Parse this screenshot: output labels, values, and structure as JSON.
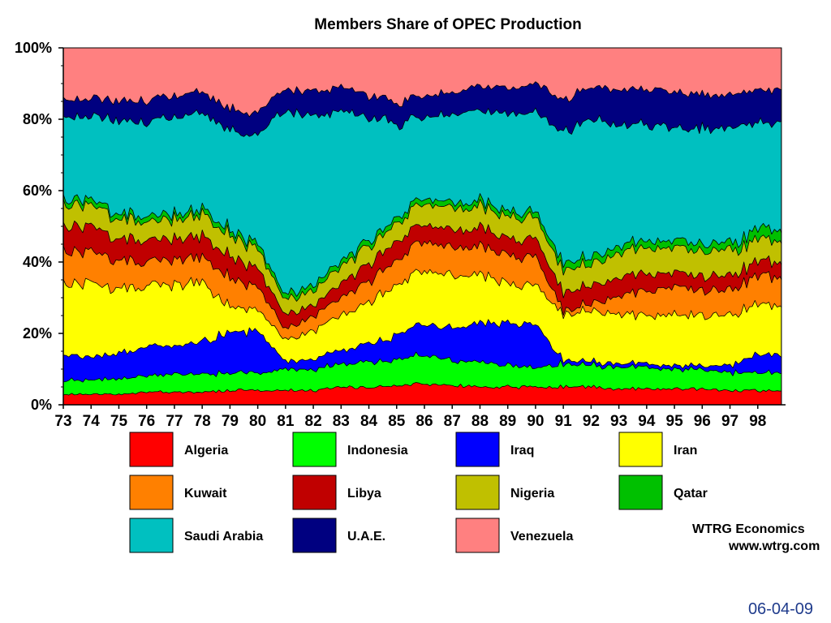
{
  "chart_data": {
    "type": "area",
    "stacked": true,
    "title": "Members Share of OPEC Production",
    "xlabel": "",
    "ylabel": "",
    "x": [
      73,
      74,
      75,
      76,
      77,
      78,
      79,
      80,
      81,
      82,
      83,
      84,
      85,
      86,
      87,
      88,
      89,
      90,
      91,
      92,
      93,
      94,
      95,
      96,
      97,
      98
    ],
    "x_tick_labels": [
      "73",
      "74",
      "75",
      "76",
      "77",
      "78",
      "79",
      "80",
      "81",
      "82",
      "83",
      "84",
      "85",
      "86",
      "87",
      "88",
      "89",
      "90",
      "91",
      "92",
      "93",
      "94",
      "95",
      "96",
      "97",
      "98"
    ],
    "xlim": [
      73,
      99
    ],
    "ylim": [
      0,
      100
    ],
    "y_ticks": [
      0,
      20,
      40,
      60,
      80,
      100
    ],
    "y_tick_labels": [
      "0%",
      "20%",
      "40%",
      "60%",
      "80%",
      "100%"
    ],
    "grid": false,
    "legend_position": "bottom",
    "series": [
      {
        "name": "Algeria",
        "color": "#ff0000",
        "values": [
          3,
          3,
          3,
          3.5,
          3.5,
          3.5,
          4,
          4,
          4,
          4,
          5,
          5,
          5.5,
          6,
          5.5,
          5,
          5,
          5,
          5,
          5,
          4.5,
          4.5,
          4.5,
          4.5,
          4,
          4
        ]
      },
      {
        "name": "Indonesia",
        "color": "#00ff00",
        "values": [
          4,
          4,
          4.5,
          4.5,
          5,
          5,
          5,
          5,
          6,
          6,
          6.5,
          7,
          7.5,
          8,
          7,
          7,
          6,
          5.5,
          6.5,
          6,
          6,
          6,
          5.5,
          5.5,
          5,
          5
        ]
      },
      {
        "name": "Iraq",
        "color": "#0000ff",
        "values": [
          7,
          6.5,
          7,
          8,
          8,
          9,
          11,
          12,
          2,
          3,
          4,
          5,
          7,
          9,
          9,
          11,
          12,
          12,
          1,
          1,
          1,
          1,
          1,
          1,
          2,
          5
        ]
      },
      {
        "name": "Iran",
        "color": "#ffff00",
        "values": [
          20,
          20,
          18,
          17,
          17,
          17,
          7,
          6,
          6,
          8,
          10,
          12,
          14,
          15,
          15,
          14,
          11,
          11,
          13,
          14,
          14,
          14,
          14,
          14,
          14,
          14
        ]
      },
      {
        "name": "Kuwait",
        "color": "#ff8000",
        "values": [
          9,
          9,
          8,
          7,
          7,
          7,
          8,
          6,
          3,
          4,
          5,
          6,
          7,
          8,
          8,
          8,
          8,
          8,
          1,
          2,
          5,
          7,
          8,
          7,
          7,
          8
        ]
      },
      {
        "name": "Libya",
        "color": "#c00000",
        "values": [
          7,
          7,
          6,
          6,
          6,
          6,
          6,
          5,
          4,
          3,
          4,
          5,
          5,
          5,
          5,
          5,
          5,
          5,
          5,
          5,
          5,
          5,
          4,
          4,
          4,
          4
        ]
      },
      {
        "name": "Nigeria",
        "color": "#c0c000",
        "values": [
          6,
          6,
          5.5,
          5,
          5.5,
          6,
          6,
          5.5,
          4,
          4,
          5,
          5,
          5,
          6,
          6,
          6,
          6,
          6,
          6,
          6,
          7,
          7,
          7,
          7,
          7,
          6
        ]
      },
      {
        "name": "Qatar",
        "color": "#00c000",
        "values": [
          1.5,
          1.5,
          1.5,
          1.5,
          1.5,
          1.5,
          1.5,
          1.5,
          1.5,
          1.5,
          1.5,
          1.5,
          1.5,
          1.5,
          1.5,
          1.5,
          1.5,
          1.5,
          2,
          2,
          2,
          2,
          2,
          2,
          2,
          3
        ]
      },
      {
        "name": "Saudi Arabia",
        "color": "#00c0c0",
        "values": [
          23,
          24,
          26,
          27,
          27,
          27,
          28,
          31,
          52,
          47,
          41,
          35,
          26,
          22,
          25,
          25,
          27,
          28,
          37,
          38,
          34,
          32,
          32,
          32,
          33,
          30
        ]
      },
      {
        "name": "U.A.E.",
        "color": "#000080",
        "values": [
          5,
          5,
          5.5,
          6,
          6,
          6,
          6,
          6,
          6,
          7,
          7,
          6,
          6,
          6,
          6,
          7,
          7,
          8,
          9,
          9,
          10,
          10,
          10,
          10,
          9,
          9
        ]
      },
      {
        "name": "Venezuela",
        "color": "#ff8080",
        "values": [
          14.5,
          14,
          15,
          14.5,
          13.5,
          12,
          17.5,
          18,
          11.5,
          12.5,
          11,
          13.5,
          15.5,
          13.5,
          12,
          10.5,
          11.5,
          10,
          14.5,
          11,
          11.5,
          11.5,
          12,
          13,
          13,
          12
        ]
      }
    ],
    "credit": [
      "WTRG Economics",
      "www.wtrg.com"
    ],
    "footer_date": "06-04-09"
  }
}
